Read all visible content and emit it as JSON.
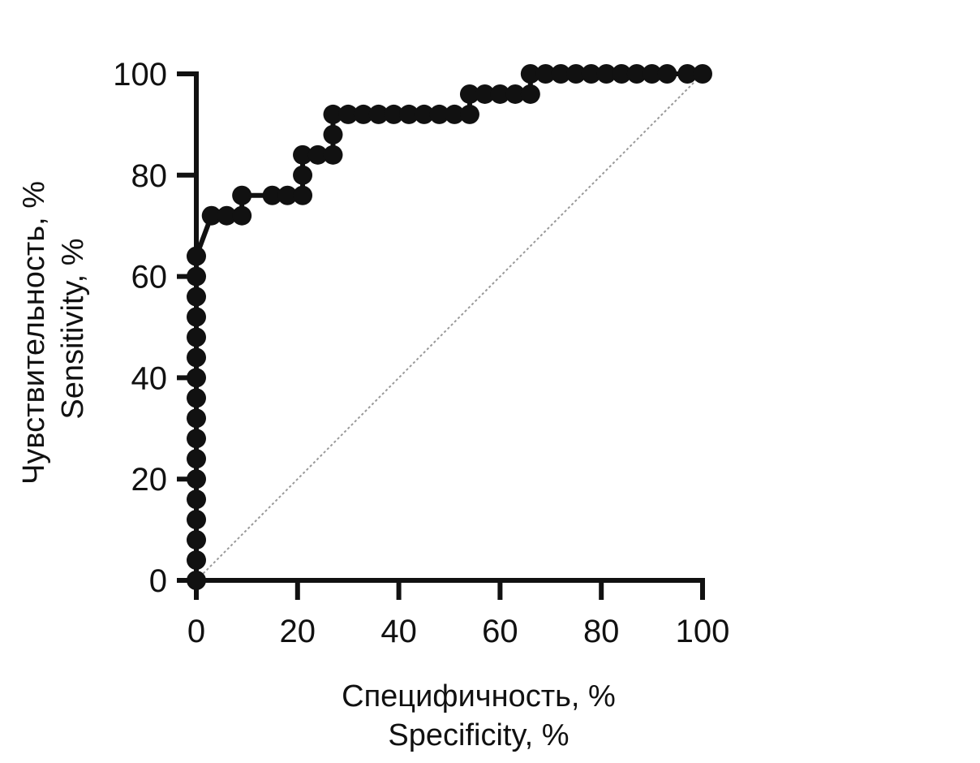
{
  "chart_data": {
    "type": "line",
    "xlabel": [
      "Специфичность, %",
      "Specificity, %"
    ],
    "ylabel": [
      "Чувствительность, %",
      "Sensitivity, %"
    ],
    "xlim": [
      0,
      100
    ],
    "ylim": [
      0,
      100
    ],
    "xticks": [
      "0",
      "20",
      "40",
      "60",
      "80",
      "100"
    ],
    "yticks": [
      "0",
      "20",
      "40",
      "60",
      "80",
      "100"
    ],
    "grid": false,
    "reference_line": {
      "x": [
        0,
        100
      ],
      "y": [
        0,
        100
      ],
      "style": "dotted"
    },
    "series": [
      {
        "x": [
          0,
          0,
          0,
          0,
          0,
          0,
          0,
          0,
          0,
          0,
          0,
          0,
          0,
          0,
          0,
          0,
          0,
          3,
          6,
          9,
          9,
          15,
          18,
          21,
          21,
          21,
          24,
          27,
          27,
          27,
          30,
          33,
          36,
          39,
          42,
          45,
          48,
          51,
          54,
          54,
          57,
          60,
          63,
          66,
          66,
          69,
          72,
          75,
          78,
          81,
          84,
          87,
          90,
          93,
          97,
          100
        ],
        "y": [
          0,
          4,
          8,
          12,
          16,
          20,
          24,
          28,
          32,
          36,
          40,
          44,
          48,
          52,
          56,
          60,
          64,
          72,
          72,
          72,
          76,
          76,
          76,
          76,
          80,
          84,
          84,
          84,
          88,
          92,
          92,
          92,
          92,
          92,
          92,
          92,
          92,
          92,
          92,
          96,
          96,
          96,
          96,
          96,
          100,
          100,
          100,
          100,
          100,
          100,
          100,
          100,
          100,
          100,
          100,
          100
        ]
      }
    ]
  }
}
